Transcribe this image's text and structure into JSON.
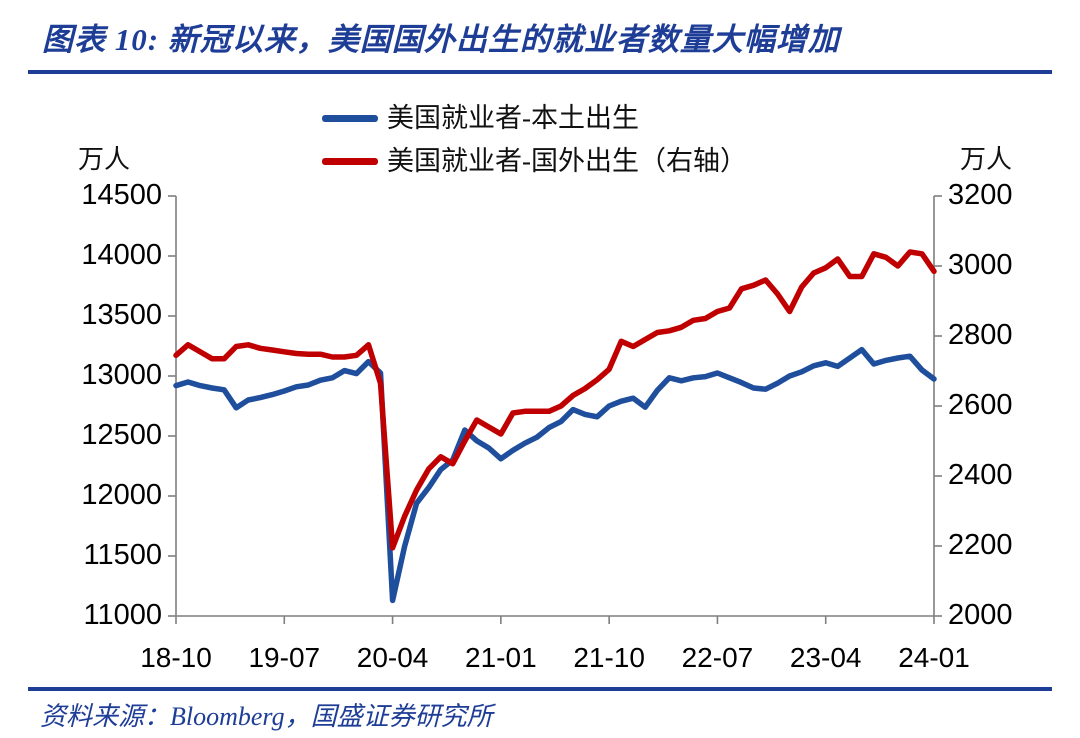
{
  "header": {
    "title": "图表 10:  新冠以来，美国国外出生的就业者数量大幅增加"
  },
  "legend": {
    "items": [
      {
        "label": "美国就业者-本土出生",
        "color": "#1F4E9C"
      },
      {
        "label": "美国就业者-国外出生（右轴）",
        "color": "#C00000"
      }
    ]
  },
  "footer": {
    "source": "资料来源：Bloomberg，国盛证券研究所"
  },
  "chart_data": {
    "type": "line",
    "title": "图表 10: 新冠以来，美国国外出生的就业者数量大幅增加",
    "grid": false,
    "legend_position": "top",
    "axis_color": "#7f7f7f",
    "x": [
      "18-10",
      "18-11",
      "18-12",
      "19-01",
      "19-02",
      "19-03",
      "19-04",
      "19-05",
      "19-06",
      "19-07",
      "19-08",
      "19-09",
      "19-10",
      "19-11",
      "19-12",
      "20-01",
      "20-02",
      "20-03",
      "20-04",
      "20-05",
      "20-06",
      "20-07",
      "20-08",
      "20-09",
      "20-10",
      "20-11",
      "20-12",
      "21-01",
      "21-02",
      "21-03",
      "21-04",
      "21-05",
      "21-06",
      "21-07",
      "21-08",
      "21-09",
      "21-10",
      "21-11",
      "21-12",
      "22-01",
      "22-02",
      "22-03",
      "22-04",
      "22-05",
      "22-06",
      "22-07",
      "22-08",
      "22-09",
      "22-10",
      "22-11",
      "22-12",
      "23-01",
      "23-02",
      "23-03",
      "23-04",
      "23-05",
      "23-06",
      "23-07",
      "23-08",
      "23-09",
      "23-10",
      "23-11",
      "23-12",
      "24-01"
    ],
    "x_tick_indices": [
      0,
      9,
      18,
      27,
      36,
      45,
      54,
      63
    ],
    "x_tick_labels": [
      "18-10",
      "19-07",
      "20-04",
      "21-01",
      "21-10",
      "22-07",
      "23-04",
      "24-01"
    ],
    "left_axis": {
      "unit": "万人",
      "min": 11000,
      "max": 14500,
      "step": 500,
      "ticks": [
        14500,
        14000,
        13500,
        13000,
        12500,
        12000,
        11500,
        11000
      ]
    },
    "right_axis": {
      "unit": "万人",
      "min": 2000,
      "max": 3200,
      "step": 200,
      "ticks": [
        3200,
        3000,
        2800,
        2600,
        2400,
        2200,
        2000
      ]
    },
    "series": [
      {
        "name": "美国就业者-本土出生",
        "axis": "left",
        "color": "#1F4E9C",
        "values": [
          12920,
          12950,
          12920,
          12900,
          12885,
          12735,
          12800,
          12820,
          12845,
          12875,
          12910,
          12925,
          12965,
          12985,
          13045,
          13020,
          13120,
          13025,
          11130,
          11580,
          11940,
          12070,
          12220,
          12300,
          12550,
          12460,
          12400,
          12310,
          12380,
          12440,
          12490,
          12570,
          12620,
          12720,
          12680,
          12660,
          12750,
          12790,
          12815,
          12740,
          12880,
          12985,
          12960,
          12985,
          12995,
          13025,
          12985,
          12945,
          12900,
          12890,
          12940,
          13000,
          13035,
          13085,
          13110,
          13080,
          13150,
          13220,
          13100,
          13130,
          13150,
          13165,
          13050,
          12975
        ]
      },
      {
        "name": "美国就业者-国外出生（右轴）",
        "axis": "right",
        "color": "#C00000",
        "values": [
          2745,
          2775,
          2755,
          2735,
          2735,
          2770,
          2775,
          2765,
          2760,
          2755,
          2750,
          2748,
          2748,
          2740,
          2740,
          2745,
          2775,
          2665,
          2195,
          2285,
          2360,
          2420,
          2455,
          2435,
          2500,
          2560,
          2540,
          2520,
          2580,
          2585,
          2585,
          2585,
          2600,
          2630,
          2650,
          2675,
          2705,
          2785,
          2770,
          2790,
          2810,
          2815,
          2825,
          2845,
          2850,
          2870,
          2880,
          2935,
          2945,
          2960,
          2920,
          2870,
          2940,
          2980,
          2995,
          3020,
          2970,
          2970,
          3035,
          3025,
          3000,
          3040,
          3035,
          2985
        ]
      }
    ]
  }
}
